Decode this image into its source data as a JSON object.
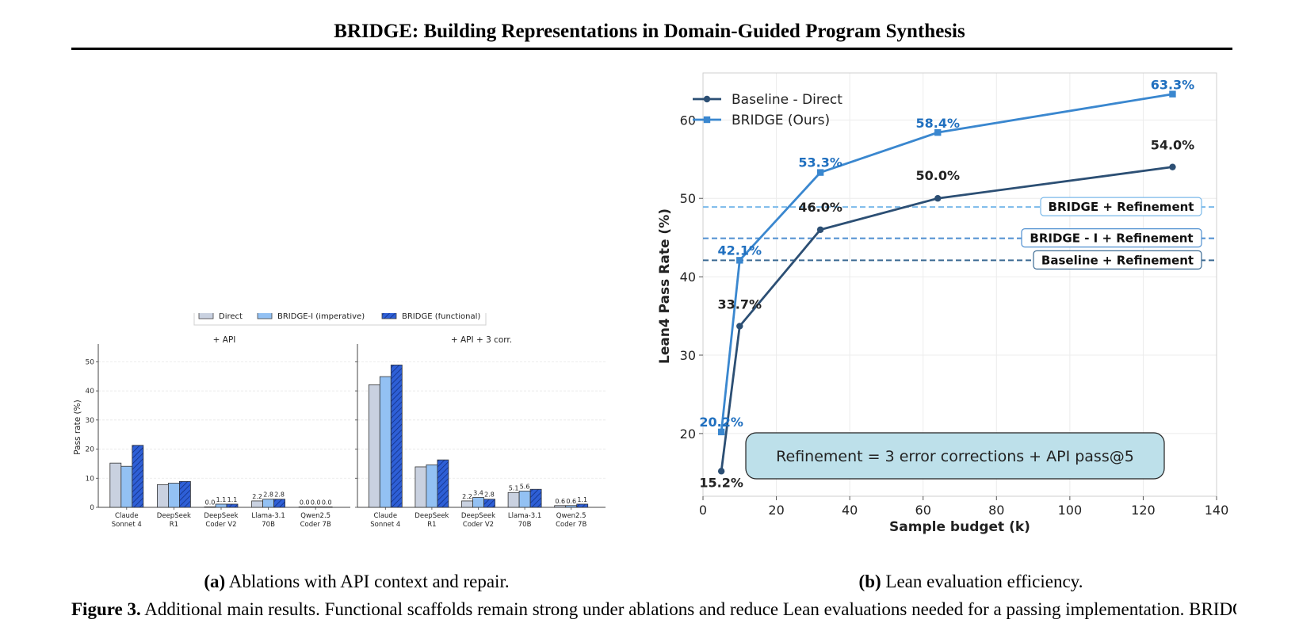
{
  "paper_title": "BRIDGE: Building Representations in Domain-Guided Program Synthesis",
  "subfigure_a": {
    "label": "(a)",
    "caption": "Ablations with API context and repair."
  },
  "subfigure_b": {
    "label": "(b)",
    "caption": "Lean evaluation efficiency."
  },
  "figure_caption": {
    "label": "Figure 3.",
    "text": "Additional main results. Functional scaffolds remain strong under ablations and reduce Lean evaluations needed for a passing implementation. BRIDGE-F denotes the functional variant; BRIDGE-I denotes the imperative/non-functional variant."
  },
  "colors": {
    "direct": "#c9d1e0",
    "bridge_i": "#93c1f3",
    "bridge_f": "#2e5fd6",
    "baseline_line": "#2c4f74",
    "bridge_line": "#3a87cf",
    "bridge_refine_line": "#7ab9ea",
    "bridge_i_refine_line": "#4f8fd0",
    "baseline_refine_line": "#3b6a93",
    "note_box": "#bde0ea"
  },
  "chart_data": [
    {
      "type": "bar",
      "legend": [
        "Direct",
        "BRIDGE-I (imperative)",
        "BRIDGE (functional)"
      ],
      "legend_placement": "top-center",
      "ylabel": "Pass rate (%)",
      "ylim": [
        0,
        55
      ],
      "yticks": [
        "0",
        "10",
        "20",
        "30",
        "40",
        "50"
      ],
      "grid": true,
      "categories": [
        [
          "Claude",
          "Sonnet 4"
        ],
        [
          "DeepSeek",
          "R1"
        ],
        [
          "DeepSeek",
          "Coder V2"
        ],
        [
          "Llama-3.1",
          "70B"
        ],
        [
          "Qwen2.5",
          "Coder 7B"
        ]
      ],
      "panels": [
        {
          "title": "+ API",
          "series": [
            {
              "name": "Direct",
              "values": [
                15.2,
                7.8,
                0.0,
                2.2,
                0.0
              ]
            },
            {
              "name": "BRIDGE-I (imperative)",
              "values": [
                14.1,
                8.3,
                1.1,
                2.8,
                0.0
              ]
            },
            {
              "name": "BRIDGE (functional)",
              "values": [
                21.3,
                8.9,
                1.1,
                2.8,
                0.0
              ]
            }
          ],
          "labels": [
            [
              "",
              "",
              ""
            ],
            [
              "",
              "",
              ""
            ],
            [
              "0.0",
              "1.1",
              "1.1"
            ],
            [
              "2.2",
              "2.8",
              "2.8"
            ],
            [
              "0.0",
              "0.0",
              "0.0"
            ]
          ]
        },
        {
          "title": "+ API + 3 corr.",
          "series": [
            {
              "name": "Direct",
              "values": [
                42.1,
                13.9,
                2.2,
                5.1,
                0.6
              ]
            },
            {
              "name": "BRIDGE-I (imperative)",
              "values": [
                44.9,
                14.6,
                3.4,
                5.6,
                0.6
              ]
            },
            {
              "name": "BRIDGE (functional)",
              "values": [
                48.9,
                16.3,
                2.8,
                6.2,
                1.1
              ]
            }
          ],
          "labels": [
            [
              "",
              "",
              ""
            ],
            [
              "",
              "",
              ""
            ],
            [
              "2.2",
              "3.4",
              "2.8"
            ],
            [
              "5.1",
              "5.6",
              ""
            ],
            [
              "0.6",
              "0.6",
              "1.1"
            ]
          ]
        }
      ]
    },
    {
      "type": "line",
      "xlabel": "Sample budget (k)",
      "ylabel": "Lean4 Pass Rate (%)",
      "xlim": [
        0,
        140
      ],
      "ylim": [
        12,
        66
      ],
      "xticks": [
        "0",
        "20",
        "40",
        "60",
        "80",
        "100",
        "120",
        "140"
      ],
      "yticks": [
        "20",
        "30",
        "40",
        "50",
        "60"
      ],
      "grid": true,
      "legend_placement": "top-left",
      "series": [
        {
          "name": "Baseline - Direct",
          "x": [
            5,
            10,
            32,
            64,
            128
          ],
          "y": [
            15.2,
            33.7,
            46.0,
            50.0,
            54.0
          ],
          "labels": [
            "15.2%",
            "33.7%",
            "46.0%",
            "50.0%",
            "54.0%"
          ]
        },
        {
          "name": "BRIDGE (Ours)",
          "x": [
            5,
            10,
            32,
            64,
            128
          ],
          "y": [
            20.2,
            42.1,
            53.3,
            58.4,
            63.3
          ],
          "labels": [
            "20.2%",
            "42.1%",
            "53.3%",
            "58.4%",
            "63.3%"
          ]
        }
      ],
      "reference_lines": [
        {
          "label": "BRIDGE + Refinement",
          "y": 48.9
        },
        {
          "label": "BRIDGE - I + Refinement",
          "y": 44.9
        },
        {
          "label": "Baseline + Refinement",
          "y": 42.1
        }
      ],
      "annotation": "Refinement = 3 error corrections + API pass@5"
    }
  ]
}
